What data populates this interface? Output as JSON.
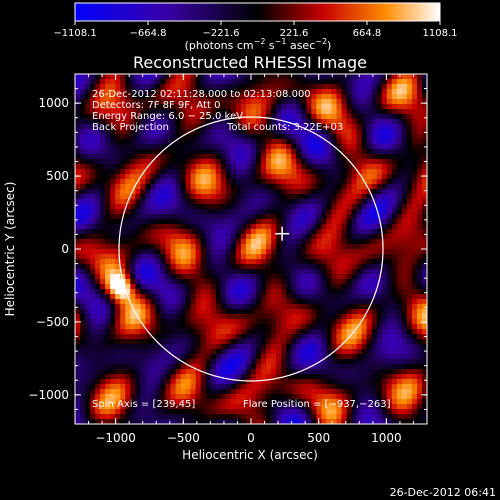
{
  "chart_data": {
    "type": "heatmap",
    "title": "Reconstructed RHESSI Image",
    "xlabel": "Heliocentric X (arcsec)",
    "ylabel": "Heliocentric Y (arcsec)",
    "xlim": [
      -1300,
      1300
    ],
    "ylim": [
      -1200,
      1200
    ],
    "x_ticks": [
      -1000,
      -500,
      0,
      500,
      1000
    ],
    "y_ticks": [
      -1000,
      -500,
      0,
      500,
      1000
    ],
    "x_tick_labels": [
      "−1000",
      "−500",
      "0",
      "500",
      "1000"
    ],
    "y_tick_labels": [
      "−1000",
      "−500",
      "0",
      "500",
      "1000"
    ],
    "colorbar": {
      "min": -1108.1,
      "max": 1108.1,
      "ticks": [
        -1108.1,
        -664.8,
        -221.6,
        221.6,
        664.8,
        1108.1
      ],
      "tick_labels": [
        "−1108.1",
        "−664.8",
        "−221.6",
        "221.6",
        "664.8",
        "1108.1"
      ],
      "colors": [
        "#0000ff",
        "#3a00a8",
        "#000000",
        "#c80000",
        "#ff8c00",
        "#ffffff"
      ]
    },
    "solar_disk": {
      "center": [
        0,
        0
      ],
      "radius": 975
    },
    "flare_position": [
      230,
      105
    ],
    "bright_source": {
      "x": -960,
      "y": -265,
      "value": 1108.1
    }
  },
  "unit_label": {
    "prefix": "(photons cm",
    "sup1": "−2",
    "mid1": " s",
    "sup2": "−1",
    "mid2": " asec",
    "sup3": "−2",
    "suffix": ")"
  },
  "info": {
    "line1": "26-Dec-2012 02:11:28.000 to 02:13:08.000",
    "line2": "Detectors: 7F 8F 9F, Att 0",
    "line3": "Energy Range: 6.0 − 25.0 keV",
    "line4a": "Back Projection",
    "line4b": "Total counts: 3.22E+03"
  },
  "spin_axis": "Spin Axis = [239,45]",
  "flare_position_text": "Flare Position = [−937,−263]",
  "footer_timestamp": "26-Dec-2012 06:41"
}
